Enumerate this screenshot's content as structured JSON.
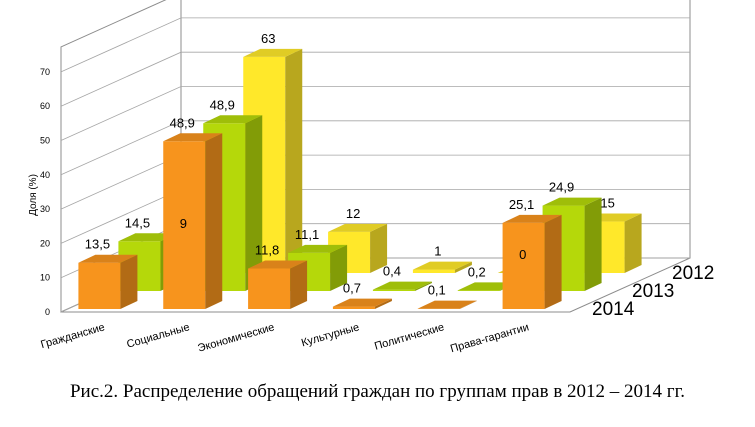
{
  "chart_data": {
    "type": "bar",
    "categories": [
      "Гражданские",
      "Социальные",
      "Экономические",
      "Культурные",
      "Политические",
      "Права-гарантии"
    ],
    "series": [
      {
        "name": "2014",
        "values": [
          13.5,
          48.9,
          11.8,
          0.7,
          0.1,
          25.1
        ],
        "labels": [
          "13,5",
          "48,9",
          "11,8",
          "0,7",
          "0,1",
          "25,1"
        ],
        "color": "#f7941d"
      },
      {
        "name": "2013",
        "values": [
          14.5,
          48.9,
          11.1,
          0.4,
          0.2,
          24.9
        ],
        "labels": [
          "14,5",
          "48,9",
          "11,1",
          "0,4",
          "0,2",
          "24,9"
        ],
        "color": "#b5d80a"
      },
      {
        "name": "2012",
        "values": [
          9,
          63,
          12,
          1,
          0,
          15
        ],
        "labels": [
          "9",
          "63",
          "12",
          "1",
          "0",
          "15"
        ],
        "color": "#ffe82a"
      }
    ],
    "ylabel": "Доля (%)",
    "yticks": [
      "0",
      "10",
      "20",
      "30",
      "40",
      "50",
      "60",
      "70"
    ],
    "ylim": [
      0,
      70
    ],
    "grid": true,
    "style": "3d-clustered-bar"
  },
  "caption": "Рис.2. Распределение обращений граждан по группам прав в 2012 – 2014 гг."
}
